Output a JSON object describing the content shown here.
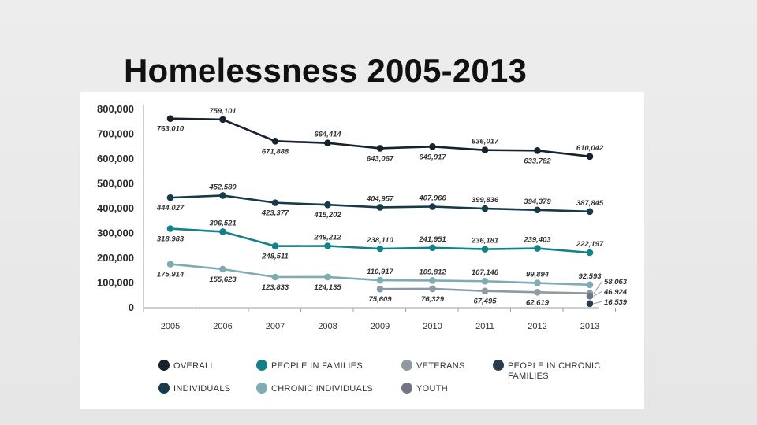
{
  "slide": {
    "title": "Homelessness 2005-2013"
  },
  "chart_data": {
    "type": "line",
    "categories": [
      "2005",
      "2006",
      "2007",
      "2008",
      "2009",
      "2010",
      "2011",
      "2012",
      "2013"
    ],
    "ylim": [
      0,
      800000
    ],
    "y_ticks": [
      "0",
      "100,000",
      "200,000",
      "300,000",
      "400,000",
      "500,000",
      "600,000",
      "700,000",
      "800,000"
    ],
    "grid": false,
    "legend_position": "bottom",
    "series": [
      {
        "name": "OVERALL",
        "color": "#16222e",
        "values": [
          763010,
          759101,
          671888,
          664414,
          643067,
          649917,
          636017,
          633782,
          610042
        ],
        "labels": [
          "763,010",
          "759,101",
          "671,888",
          "664,414",
          "643,067",
          "649,917",
          "636,017",
          "633,782",
          "610,042"
        ]
      },
      {
        "name": "INDIVIDUALS",
        "color": "#173a4b",
        "values": [
          444027,
          452580,
          423377,
          415202,
          404957,
          407966,
          399836,
          394379,
          387845
        ],
        "labels": [
          "444,027",
          "452,580",
          "423,377",
          "415,202",
          "404,957",
          "407,966",
          "399,836",
          "394,379",
          "387,845"
        ]
      },
      {
        "name": "PEOPLE IN FAMILIES",
        "color": "#138188",
        "values": [
          318983,
          306521,
          248511,
          249212,
          238110,
          241951,
          236181,
          239403,
          222197
        ],
        "labels": [
          "318,983",
          "306,521",
          "248,511",
          "249,212",
          "238,110",
          "241,951",
          "236,181",
          "239,403",
          "222,197"
        ]
      },
      {
        "name": "CHRONIC INDIVIDUALS",
        "color": "#7fabb3",
        "values": [
          175914,
          155623,
          123833,
          124135,
          110917,
          109812,
          107148,
          99894,
          92593
        ],
        "labels": [
          "175,914",
          "155,623",
          "123,833",
          "124,135",
          "110,917",
          "109,812",
          "107,148",
          "99,894",
          "92,593"
        ]
      },
      {
        "name": "VETERANS",
        "color": "#8e9aa3",
        "values": [
          null,
          null,
          null,
          null,
          75609,
          76329,
          67495,
          62619,
          58063
        ],
        "labels": [
          null,
          null,
          null,
          null,
          "75,609",
          "76,329",
          "67,495",
          "62,619",
          "58,063"
        ]
      },
      {
        "name": "YOUTH",
        "color": "#6f7582",
        "values": [
          null,
          null,
          null,
          null,
          null,
          null,
          null,
          null,
          46924
        ],
        "labels": [
          null,
          null,
          null,
          null,
          null,
          null,
          null,
          null,
          "46,924"
        ]
      },
      {
        "name": "PEOPLE IN CHRONIC FAMILIES",
        "color": "#2a3b4c",
        "values": [
          null,
          null,
          null,
          null,
          null,
          null,
          null,
          null,
          16539
        ],
        "labels": [
          null,
          null,
          null,
          null,
          null,
          null,
          null,
          null,
          "16,539"
        ]
      }
    ],
    "legend": [
      {
        "label": "OVERALL",
        "color": "#16222e"
      },
      {
        "label": "PEOPLE IN FAMILIES",
        "color": "#138188"
      },
      {
        "label": "VETERANS",
        "color": "#8e9aa3"
      },
      {
        "label": "PEOPLE IN CHRONIC",
        "label2": "FAMILIES",
        "color": "#2a3b4c"
      },
      {
        "label": "INDIVIDUALS",
        "color": "#173a4b"
      },
      {
        "label": "CHRONIC INDIVIDUALS",
        "color": "#7fabb3"
      },
      {
        "label": "YOUTH",
        "color": "#6f7582"
      }
    ]
  }
}
